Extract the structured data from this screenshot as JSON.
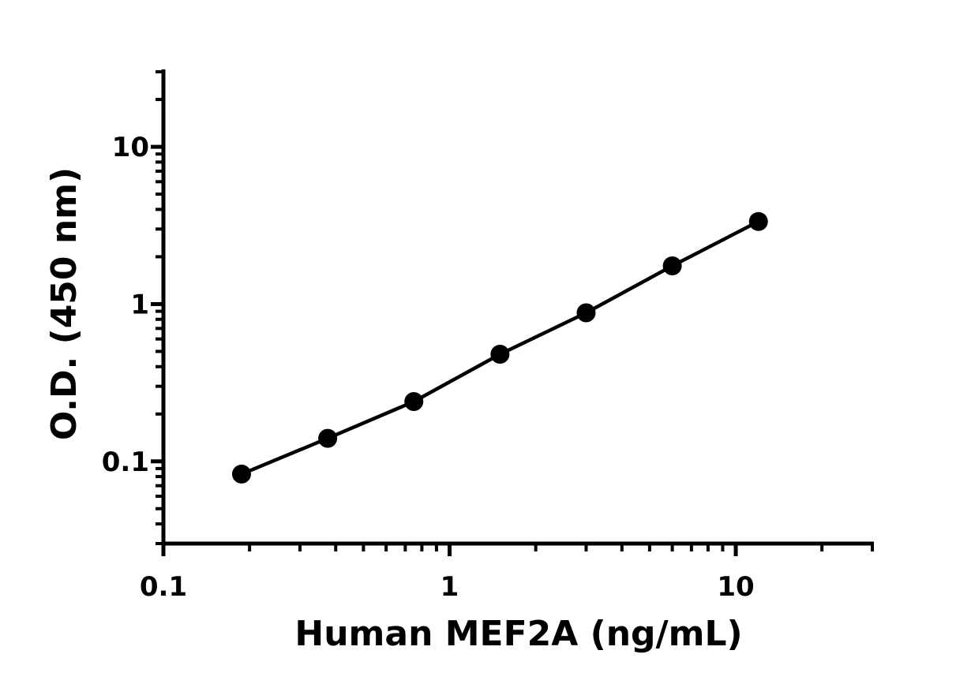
{
  "chart_data": {
    "type": "scatter",
    "title": "",
    "xlabel": "Human MEF2A (ng/mL)",
    "ylabel": "O.D. (450 nm)",
    "x_scale": "log",
    "y_scale": "log",
    "xlim": [
      0.1,
      30
    ],
    "ylim": [
      0.03,
      30
    ],
    "x_ticks": [
      {
        "value": 0.1,
        "label": "0.1"
      },
      {
        "value": 1,
        "label": "1"
      },
      {
        "value": 10,
        "label": "10"
      }
    ],
    "y_ticks": [
      {
        "value": 0.1,
        "label": "0.1"
      },
      {
        "value": 1,
        "label": "1"
      },
      {
        "value": 10,
        "label": "10"
      }
    ],
    "grid": false,
    "series": [
      {
        "x": [
          0.1875,
          0.375,
          0.75,
          1.5,
          3,
          6,
          12
        ],
        "y": [
          0.083,
          0.14,
          0.24,
          0.48,
          0.88,
          1.75,
          3.35
        ],
        "color": "#000000",
        "marker": "circle",
        "line": true
      }
    ]
  }
}
